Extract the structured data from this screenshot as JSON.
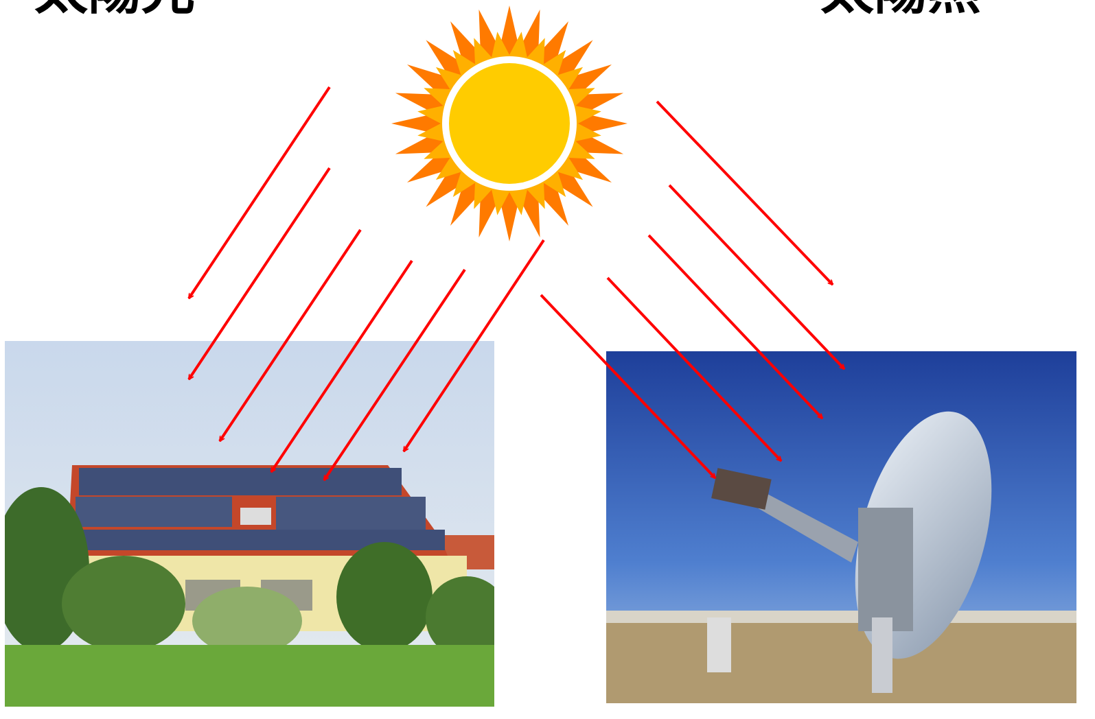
{
  "labels": {
    "left": "太陽光",
    "right": "太陽熱"
  }
}
